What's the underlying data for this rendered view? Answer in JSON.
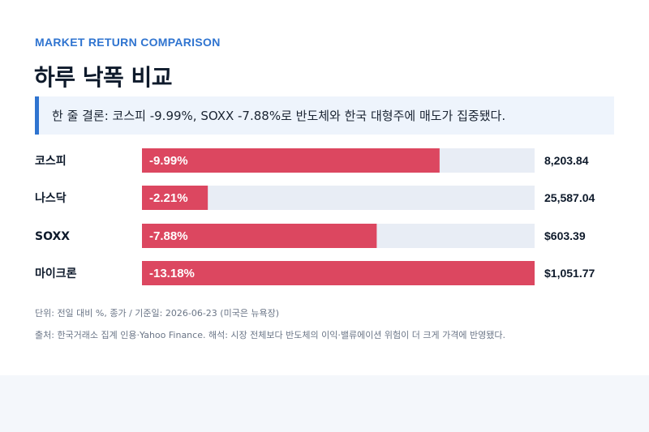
{
  "header": {
    "kicker": "MARKET RETURN COMPARISON",
    "title": "하루 낙폭 비교",
    "summary": "한 줄 결론: 코스피 -9.99%, SOXX -7.88%로 반도체와 한국 대형주에 매도가 집중됐다."
  },
  "chart_data": {
    "type": "bar",
    "orientation": "horizontal",
    "categories": [
      "코스피",
      "나스닥",
      "SOXX",
      "마이크론"
    ],
    "series": [
      {
        "values": [
          -9.99,
          -2.21,
          -7.88,
          -13.18
        ],
        "value_labels": [
          "-9.99%",
          "-2.21%",
          "-7.88%",
          "-13.18%"
        ]
      }
    ],
    "close_labels": [
      "8,203.84",
      "25,587.04",
      "$603.39",
      "$1,051.77"
    ],
    "xlim": [
      0,
      13.18
    ],
    "bar_color": "#dc4760",
    "track_color": "#e8edf5",
    "grid": false,
    "legend": "none"
  },
  "notes": {
    "unit": "단위: 전일 대비 %, 종가 / 기준일: 2026-06-23 (미국은 뉴욕장)",
    "source": "출처: 한국거래소 집계 인용·Yahoo Finance. 해석: 시장 전체보다 반도체의 이익·밸류에이션 위험이 더 크게 가격에 반영됐다."
  }
}
